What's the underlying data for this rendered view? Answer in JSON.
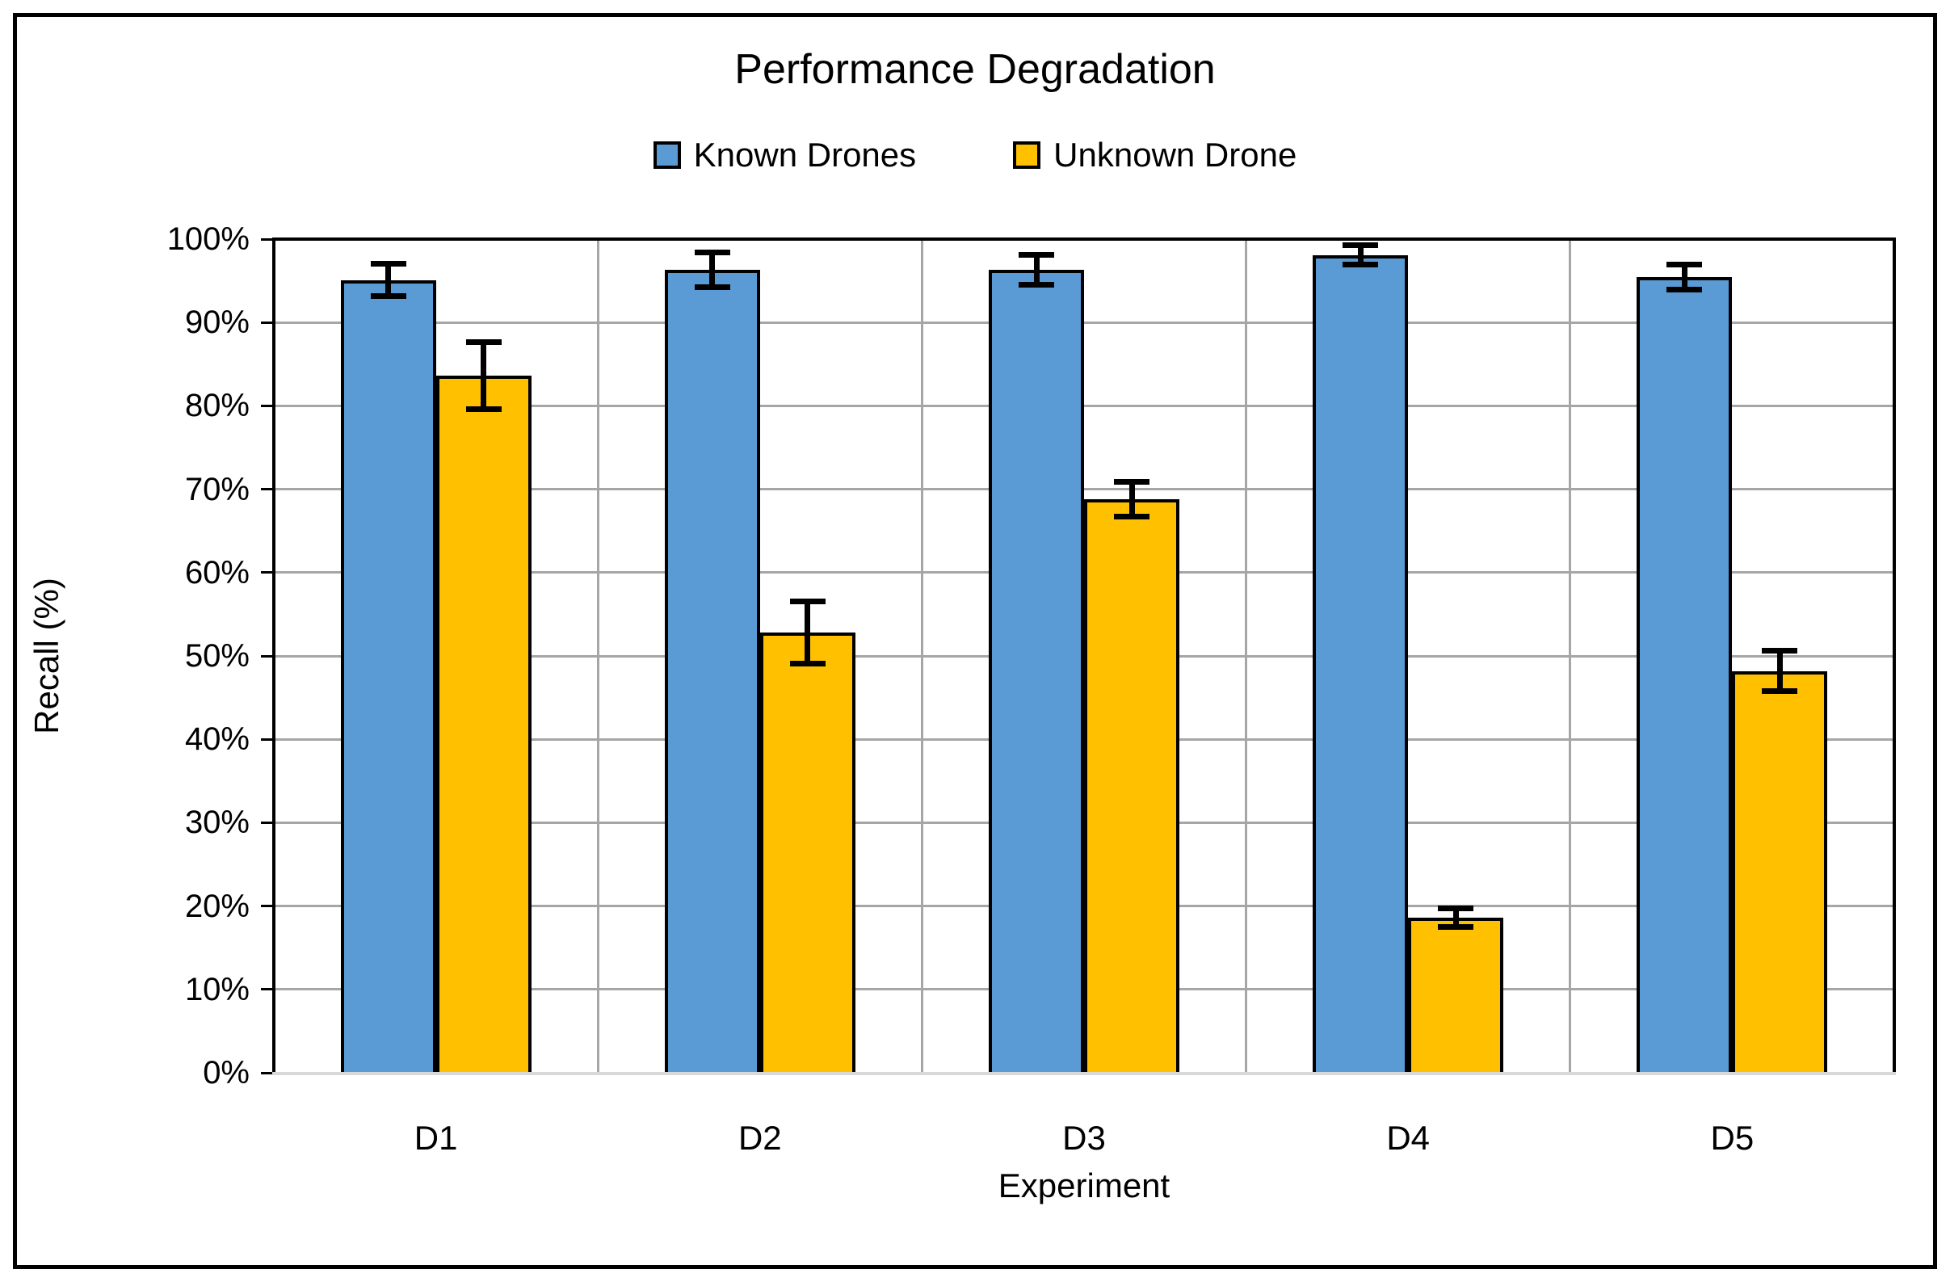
{
  "figure": {
    "background": "#FFFFFF",
    "border_color": "#000000"
  },
  "chart_data": {
    "type": "bar",
    "title": "Performance Degradation",
    "xlabel": "Experiment",
    "ylabel": "Recall (%)",
    "categories": [
      "D1",
      "D2",
      "D3",
      "D4",
      "D5"
    ],
    "series": [
      {
        "name": "Known Drones",
        "color": "#5B9BD5",
        "values": [
          95.1,
          96.3,
          96.3,
          98.1,
          95.4
        ],
        "error_bars": [
          1.9,
          2.1,
          1.8,
          1.2,
          1.5
        ]
      },
      {
        "name": "Unknown Drone",
        "color": "#FFC000",
        "values": [
          83.6,
          52.8,
          68.8,
          18.6,
          48.2
        ],
        "error_bars": [
          4.0,
          3.7,
          2.1,
          1.1,
          2.4
        ]
      }
    ],
    "ylim": [
      0,
      100
    ],
    "ytick_step": 10,
    "ytick_labels": [
      "0%",
      "10%",
      "20%",
      "30%",
      "40%",
      "50%",
      "60%",
      "70%",
      "80%",
      "90%",
      "100%"
    ],
    "legend_position": "top",
    "grid": {
      "horizontal": true,
      "vertical": true,
      "color": "#A6A6A6"
    },
    "axis_colors": {
      "y_axis_line": "#000000",
      "x_axis_line": "#D9D9D9",
      "plot_border": "#000000"
    },
    "error_bar_color": "#000000"
  }
}
